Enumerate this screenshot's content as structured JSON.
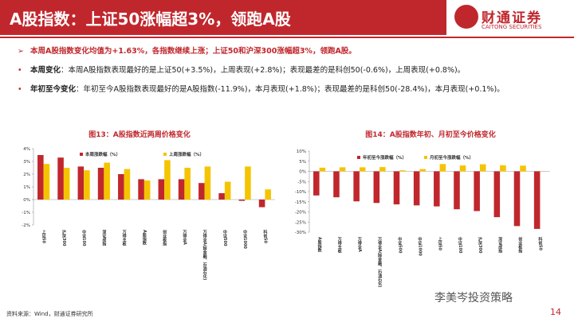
{
  "header": {
    "title": "A股指数：上证50涨幅超3%，领跑A股",
    "logo": "财通证券",
    "logo_en": "CAITONG SECURITIES"
  },
  "bullets": [
    {
      "text": "本周A股指数变化均值为+1.63%，各指数继续上涨；上证50和沪深300涨幅超3%，领跑A股。"
    },
    {
      "lead": "本周变化",
      "text": "：本周A股指数表现最好的是上证50(+3.5%)，上周表现(+2.8%)；表现最差的是科创50(-0.6%)，上周表现(+0.8%)。"
    },
    {
      "lead": "年初至今变化",
      "text": "：年初至今A股指数表现最好的是A股指数(-11.9%)，本月表现(+1.8%)；表现最差的是科创50(-28.4%)，本月表现(+0.1%)。"
    }
  ],
  "chart_data": [
    {
      "type": "bar",
      "title": "图13：A股指数近两周价格变化",
      "categories": [
        "上证50",
        "沪深300",
        "中证100",
        "深证成指",
        "万得主板",
        "A股指数",
        "创业板指",
        "万得全A",
        "万得全A(除金融、石油石化)",
        "中证500",
        "中证1000",
        "科创50"
      ],
      "series": [
        {
          "name": "本周涨跌幅（%）",
          "color": "#c0272d",
          "values": [
            3.5,
            3.3,
            2.6,
            2.5,
            2.0,
            1.6,
            1.6,
            1.6,
            1.3,
            0.5,
            -0.1,
            -0.6
          ]
        },
        {
          "name": "上周涨跌幅（%）",
          "color": "#f5c400",
          "values": [
            2.8,
            2.5,
            2.3,
            2.9,
            2.4,
            1.5,
            3.1,
            2.5,
            2.6,
            1.4,
            2.6,
            0.8
          ]
        }
      ],
      "ylim": [
        -2,
        4
      ],
      "yticks": [
        {
          "value": -2,
          "label": "-2%"
        },
        {
          "value": -1,
          "label": "-1%"
        },
        {
          "value": 0,
          "label": "0%"
        },
        {
          "value": 1,
          "label": "1%"
        },
        {
          "value": 2,
          "label": "2%"
        },
        {
          "value": 3,
          "label": "3%"
        },
        {
          "value": 4,
          "label": "4%"
        }
      ],
      "grid": false
    },
    {
      "type": "bar",
      "title": "图14：A股指数年初、月初至今价格变化",
      "categories": [
        "A股指数",
        "万得主板",
        "万得全A",
        "万得全A(除金融、石油石化)",
        "中证500",
        "中证1000",
        "上证50",
        "中证100",
        "沪深300",
        "深证成指",
        "创业板指",
        "科创50"
      ],
      "series": [
        {
          "name": "年初至今涨跌幅（%）",
          "color": "#c0272d",
          "values": [
            -11.9,
            -12.8,
            -14.8,
            -15.6,
            -16.3,
            -16.8,
            -17.3,
            -18.7,
            -19.6,
            -22.6,
            -27.0,
            -28.4
          ]
        },
        {
          "name": "月初至今涨跌幅（%）",
          "color": "#f5c400",
          "values": [
            1.8,
            2.0,
            2.0,
            2.1,
            0.5,
            1.1,
            3.6,
            2.9,
            3.5,
            3.0,
            2.8,
            0.1
          ]
        }
      ],
      "ylim": [
        -30,
        10
      ],
      "yticks": [
        {
          "value": -30,
          "label": "-30%"
        },
        {
          "value": -25,
          "label": "-25%"
        },
        {
          "value": -20,
          "label": "-20%"
        },
        {
          "value": -15,
          "label": "-15%"
        },
        {
          "value": -10,
          "label": "-10%"
        },
        {
          "value": -5,
          "label": "-5%"
        },
        {
          "value": 0,
          "label": "0%"
        },
        {
          "value": 5,
          "label": "5%"
        },
        {
          "value": 10,
          "label": "10%"
        }
      ],
      "grid": false
    }
  ],
  "footer": {
    "source": "资料来源：Wind，财通证券研究所",
    "page": "14",
    "watermark": "李美岑投资策略"
  }
}
